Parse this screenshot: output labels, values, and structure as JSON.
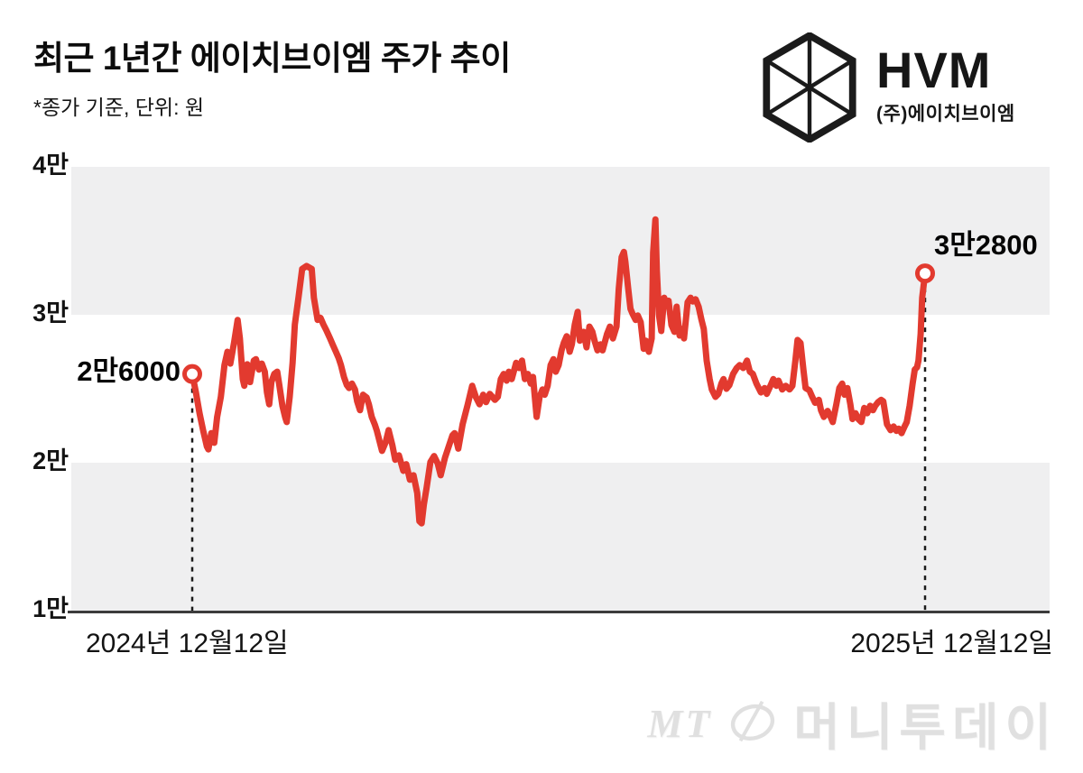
{
  "header": {
    "title": "최근 1년간 에이치브이엠 주가 추이",
    "subtitle": "*종가 기준, 단위: 원"
  },
  "logo": {
    "name": "HVM",
    "subname": "(주)에이치브이엠"
  },
  "watermark": {
    "mt": "MT",
    "brand": "머니투데이"
  },
  "chart_data": {
    "type": "line",
    "title": "최근 1년간 에이치브이엠 주가 추이",
    "unit": "원",
    "series_name": "에이치브이엠 종가",
    "line_color": "#e23a2f",
    "band_color": "#efeff0",
    "axis_color": "#3c3c3c",
    "guide_color": "#1a1a1a",
    "ylim": [
      10000,
      40000
    ],
    "grid": "horizontal-bands",
    "y_axis": {
      "min": 10000,
      "max": 40000,
      "ticks": [
        {
          "label": "1만",
          "value": 10000
        },
        {
          "label": "2만",
          "value": 20000
        },
        {
          "label": "3만",
          "value": 30000
        },
        {
          "label": "4만",
          "value": 40000
        }
      ]
    },
    "x_axis": {
      "ticks": [
        {
          "label": "2024년 12월12일",
          "t": 0
        },
        {
          "label": "2025년 12월12일",
          "t": 1
        }
      ]
    },
    "annotations": {
      "start": {
        "label": "2만6000",
        "value": 26000,
        "t": 0
      },
      "end": {
        "label": "3만2800",
        "value": 32800,
        "t": 1
      }
    },
    "points": [
      [
        0.0,
        26000
      ],
      [
        0.005,
        24750
      ],
      [
        0.01,
        23350
      ],
      [
        0.015,
        22150
      ],
      [
        0.02,
        21100
      ],
      [
        0.022,
        20900
      ],
      [
        0.026,
        22000
      ],
      [
        0.03,
        21350
      ],
      [
        0.034,
        23100
      ],
      [
        0.039,
        24450
      ],
      [
        0.044,
        26600
      ],
      [
        0.048,
        27500
      ],
      [
        0.052,
        26700
      ],
      [
        0.057,
        28100
      ],
      [
        0.062,
        29650
      ],
      [
        0.065,
        28400
      ],
      [
        0.069,
        25650
      ],
      [
        0.071,
        25200
      ],
      [
        0.075,
        26650
      ],
      [
        0.079,
        25450
      ],
      [
        0.084,
        26900
      ],
      [
        0.087,
        27000
      ],
      [
        0.091,
        26300
      ],
      [
        0.095,
        26700
      ],
      [
        0.099,
        26150
      ],
      [
        0.102,
        24750
      ],
      [
        0.105,
        23950
      ],
      [
        0.108,
        25450
      ],
      [
        0.112,
        26000
      ],
      [
        0.116,
        26150
      ],
      [
        0.119,
        25200
      ],
      [
        0.123,
        23850
      ],
      [
        0.127,
        23050
      ],
      [
        0.129,
        22750
      ],
      [
        0.133,
        24450
      ],
      [
        0.137,
        26750
      ],
      [
        0.14,
        29350
      ],
      [
        0.145,
        31150
      ],
      [
        0.15,
        33100
      ],
      [
        0.156,
        33300
      ],
      [
        0.163,
        33100
      ],
      [
        0.166,
        31150
      ],
      [
        0.171,
        29650
      ],
      [
        0.175,
        29800
      ],
      [
        0.179,
        29350
      ],
      [
        0.183,
        28950
      ],
      [
        0.188,
        28400
      ],
      [
        0.192,
        27950
      ],
      [
        0.196,
        27500
      ],
      [
        0.2,
        27050
      ],
      [
        0.203,
        26600
      ],
      [
        0.207,
        25800
      ],
      [
        0.211,
        25250
      ],
      [
        0.214,
        25050
      ],
      [
        0.218,
        25350
      ],
      [
        0.222,
        24950
      ],
      [
        0.225,
        24150
      ],
      [
        0.229,
        23550
      ],
      [
        0.233,
        24600
      ],
      [
        0.238,
        24400
      ],
      [
        0.241,
        23950
      ],
      [
        0.245,
        23100
      ],
      [
        0.249,
        22600
      ],
      [
        0.252,
        22150
      ],
      [
        0.259,
        20800
      ],
      [
        0.264,
        21400
      ],
      [
        0.268,
        22200
      ],
      [
        0.273,
        21200
      ],
      [
        0.277,
        20200
      ],
      [
        0.282,
        20500
      ],
      [
        0.288,
        19450
      ],
      [
        0.292,
        19900
      ],
      [
        0.297,
        18850
      ],
      [
        0.302,
        19150
      ],
      [
        0.307,
        17950
      ],
      [
        0.31,
        16050
      ],
      [
        0.313,
        15900
      ],
      [
        0.316,
        17150
      ],
      [
        0.32,
        18350
      ],
      [
        0.325,
        20050
      ],
      [
        0.33,
        20450
      ],
      [
        0.335,
        19950
      ],
      [
        0.339,
        19150
      ],
      [
        0.345,
        20350
      ],
      [
        0.35,
        21100
      ],
      [
        0.355,
        21850
      ],
      [
        0.358,
        22000
      ],
      [
        0.363,
        20950
      ],
      [
        0.369,
        22600
      ],
      [
        0.376,
        23950
      ],
      [
        0.382,
        25200
      ],
      [
        0.387,
        24450
      ],
      [
        0.392,
        23950
      ],
      [
        0.397,
        24600
      ],
      [
        0.401,
        24100
      ],
      [
        0.406,
        24650
      ],
      [
        0.413,
        24250
      ],
      [
        0.417,
        24450
      ],
      [
        0.421,
        25650
      ],
      [
        0.425,
        26000
      ],
      [
        0.429,
        25550
      ],
      [
        0.432,
        26150
      ],
      [
        0.436,
        25650
      ],
      [
        0.442,
        26750
      ],
      [
        0.446,
        26400
      ],
      [
        0.45,
        26900
      ],
      [
        0.454,
        25650
      ],
      [
        0.458,
        26000
      ],
      [
        0.462,
        25350
      ],
      [
        0.465,
        25800
      ],
      [
        0.47,
        23100
      ],
      [
        0.474,
        24450
      ],
      [
        0.478,
        24950
      ],
      [
        0.481,
        24600
      ],
      [
        0.485,
        25200
      ],
      [
        0.489,
        26600
      ],
      [
        0.493,
        27000
      ],
      [
        0.496,
        26150
      ],
      [
        0.5,
        26600
      ],
      [
        0.504,
        27600
      ],
      [
        0.507,
        28100
      ],
      [
        0.511,
        28550
      ],
      [
        0.515,
        27500
      ],
      [
        0.518,
        28000
      ],
      [
        0.522,
        29350
      ],
      [
        0.526,
        30200
      ],
      [
        0.529,
        28250
      ],
      [
        0.534,
        28850
      ],
      [
        0.538,
        27800
      ],
      [
        0.542,
        29200
      ],
      [
        0.546,
        28850
      ],
      [
        0.549,
        28250
      ],
      [
        0.553,
        27600
      ],
      [
        0.557,
        28000
      ],
      [
        0.56,
        27600
      ],
      [
        0.566,
        28700
      ],
      [
        0.57,
        29200
      ],
      [
        0.574,
        28400
      ],
      [
        0.579,
        29200
      ],
      [
        0.582,
        31750
      ],
      [
        0.586,
        33900
      ],
      [
        0.589,
        34250
      ],
      [
        0.591,
        33600
      ],
      [
        0.595,
        31750
      ],
      [
        0.598,
        30400
      ],
      [
        0.601,
        30050
      ],
      [
        0.605,
        29650
      ],
      [
        0.608,
        29950
      ],
      [
        0.612,
        29500
      ],
      [
        0.616,
        27700
      ],
      [
        0.619,
        28250
      ],
      [
        0.623,
        27500
      ],
      [
        0.627,
        28400
      ],
      [
        0.629,
        34200
      ],
      [
        0.632,
        36450
      ],
      [
        0.634,
        33000
      ],
      [
        0.637,
        29950
      ],
      [
        0.64,
        28900
      ],
      [
        0.644,
        31150
      ],
      [
        0.648,
        30650
      ],
      [
        0.65,
        30950
      ],
      [
        0.654,
        29300
      ],
      [
        0.658,
        28850
      ],
      [
        0.661,
        30550
      ],
      [
        0.665,
        28600
      ],
      [
        0.669,
        29050
      ],
      [
        0.671,
        28400
      ],
      [
        0.676,
        30850
      ],
      [
        0.68,
        31150
      ],
      [
        0.683,
        30900
      ],
      [
        0.687,
        31050
      ],
      [
        0.691,
        30550
      ],
      [
        0.695,
        29650
      ],
      [
        0.698,
        29050
      ],
      [
        0.702,
        26900
      ],
      [
        0.706,
        25650
      ],
      [
        0.709,
        24950
      ],
      [
        0.714,
        24450
      ],
      [
        0.718,
        24650
      ],
      [
        0.722,
        25350
      ],
      [
        0.725,
        25650
      ],
      [
        0.729,
        25000
      ],
      [
        0.733,
        25250
      ],
      [
        0.738,
        26000
      ],
      [
        0.743,
        26400
      ],
      [
        0.747,
        26600
      ],
      [
        0.752,
        26400
      ],
      [
        0.757,
        26900
      ],
      [
        0.761,
        26150
      ],
      [
        0.765,
        26000
      ],
      [
        0.77,
        25350
      ],
      [
        0.776,
        24750
      ],
      [
        0.781,
        25050
      ],
      [
        0.784,
        24650
      ],
      [
        0.789,
        25200
      ],
      [
        0.793,
        25650
      ],
      [
        0.797,
        25200
      ],
      [
        0.8,
        25550
      ],
      [
        0.805,
        24950
      ],
      [
        0.81,
        25200
      ],
      [
        0.815,
        24950
      ],
      [
        0.819,
        25200
      ],
      [
        0.823,
        26900
      ],
      [
        0.826,
        28300
      ],
      [
        0.83,
        28100
      ],
      [
        0.834,
        26300
      ],
      [
        0.837,
        25050
      ],
      [
        0.842,
        24900
      ],
      [
        0.846,
        24450
      ],
      [
        0.85,
        24050
      ],
      [
        0.855,
        24250
      ],
      [
        0.858,
        23550
      ],
      [
        0.862,
        23100
      ],
      [
        0.867,
        23500
      ],
      [
        0.871,
        23100
      ],
      [
        0.874,
        22750
      ],
      [
        0.879,
        23950
      ],
      [
        0.883,
        25050
      ],
      [
        0.887,
        25350
      ],
      [
        0.89,
        24600
      ],
      [
        0.894,
        25050
      ],
      [
        0.898,
        23950
      ],
      [
        0.901,
        22950
      ],
      [
        0.905,
        23350
      ],
      [
        0.909,
        22950
      ],
      [
        0.913,
        22750
      ],
      [
        0.917,
        23700
      ],
      [
        0.921,
        23350
      ],
      [
        0.925,
        23850
      ],
      [
        0.929,
        23550
      ],
      [
        0.932,
        23850
      ],
      [
        0.936,
        24100
      ],
      [
        0.94,
        24250
      ],
      [
        0.943,
        24150
      ],
      [
        0.948,
        22600
      ],
      [
        0.953,
        22200
      ],
      [
        0.957,
        22450
      ],
      [
        0.961,
        22150
      ],
      [
        0.964,
        22300
      ],
      [
        0.968,
        22000
      ],
      [
        0.972,
        22450
      ],
      [
        0.975,
        22750
      ],
      [
        0.979,
        23850
      ],
      [
        0.983,
        25350
      ],
      [
        0.986,
        26300
      ],
      [
        0.989,
        26450
      ],
      [
        0.991,
        26900
      ],
      [
        0.994,
        28700
      ],
      [
        0.996,
        31150
      ],
      [
        1.0,
        32800
      ]
    ]
  }
}
